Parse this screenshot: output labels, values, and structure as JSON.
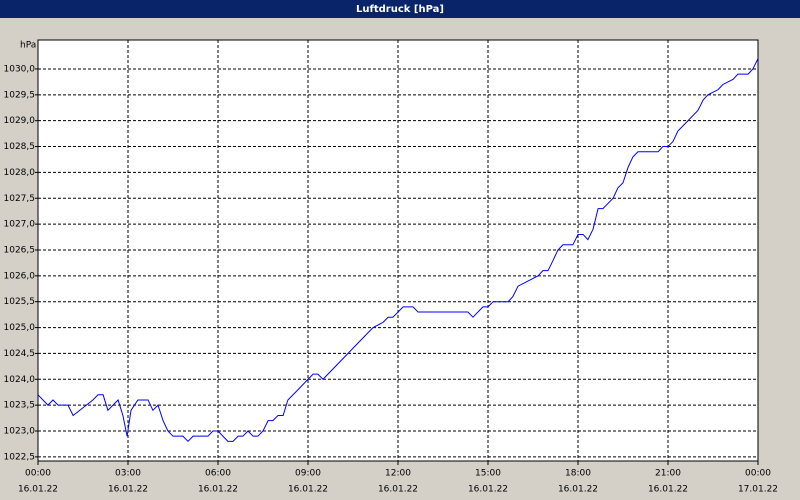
{
  "chart_data": {
    "type": "line",
    "title": "Luftdruck [hPa]",
    "y_unit": "hPa",
    "x": [
      0,
      0.33,
      0.5,
      0.67,
      1.0,
      1.17,
      1.5,
      1.83,
      2.0,
      2.17,
      2.33,
      2.5,
      2.67,
      2.83,
      2.97,
      3.1,
      3.33,
      3.67,
      3.83,
      4.0,
      4.17,
      4.33,
      4.5,
      4.83,
      5.0,
      5.17,
      5.67,
      5.83,
      6.0,
      6.33,
      6.5,
      6.67,
      6.83,
      7.0,
      7.17,
      7.33,
      7.5,
      7.67,
      7.83,
      8.0,
      8.17,
      8.33,
      8.67,
      9.0,
      9.17,
      9.33,
      9.5,
      10.0,
      10.5,
      11.0,
      11.17,
      11.5,
      11.67,
      11.83,
      12.0,
      12.17,
      12.5,
      12.67,
      13.0,
      14.33,
      14.5,
      14.83,
      15.0,
      15.17,
      15.67,
      15.83,
      16.0,
      16.33,
      16.67,
      16.83,
      17.0,
      17.17,
      17.33,
      17.5,
      17.83,
      18.0,
      18.17,
      18.33,
      18.5,
      18.67,
      18.83,
      19.0,
      19.17,
      19.33,
      19.5,
      19.67,
      19.83,
      20.0,
      20.67,
      20.83,
      21.0,
      21.17,
      21.33,
      21.5,
      22.0,
      22.17,
      22.33,
      22.67,
      22.83,
      23.17,
      23.33,
      23.67,
      23.83,
      24.0
    ],
    "series": [
      {
        "name": "Luftdruck",
        "color": "#0000ff",
        "values": [
          1023.7,
          1023.5,
          1023.6,
          1023.5,
          1023.5,
          1023.3,
          1023.45,
          1023.6,
          1023.7,
          1023.7,
          1023.4,
          1023.5,
          1023.6,
          1023.3,
          1022.9,
          1023.4,
          1023.6,
          1023.6,
          1023.4,
          1023.5,
          1023.2,
          1023.0,
          1022.9,
          1022.9,
          1022.8,
          1022.9,
          1022.9,
          1023.0,
          1023.0,
          1022.8,
          1022.8,
          1022.9,
          1022.9,
          1023.0,
          1022.9,
          1022.9,
          1023.0,
          1023.2,
          1023.2,
          1023.3,
          1023.3,
          1023.6,
          1023.8,
          1024.0,
          1024.1,
          1024.1,
          1024.0,
          1024.3,
          1024.6,
          1024.9,
          1025.0,
          1025.1,
          1025.2,
          1025.2,
          1025.3,
          1025.4,
          1025.4,
          1025.3,
          1025.3,
          1025.3,
          1025.2,
          1025.4,
          1025.4,
          1025.5,
          1025.5,
          1025.6,
          1025.8,
          1025.9,
          1026.0,
          1026.1,
          1026.1,
          1026.3,
          1026.5,
          1026.6,
          1026.6,
          1026.8,
          1026.8,
          1026.7,
          1026.9,
          1027.3,
          1027.3,
          1027.4,
          1027.5,
          1027.7,
          1027.8,
          1028.1,
          1028.3,
          1028.4,
          1028.4,
          1028.5,
          1028.5,
          1028.6,
          1028.8,
          1028.9,
          1029.2,
          1029.4,
          1029.5,
          1029.6,
          1029.7,
          1029.8,
          1029.9,
          1029.9,
          1030.0,
          1030.2
        ]
      }
    ],
    "xlim": [
      0,
      24
    ],
    "xticks": [
      {
        "value": 0,
        "label": "00:00"
      },
      {
        "value": 3,
        "label": "03:00"
      },
      {
        "value": 6,
        "label": "06:00"
      },
      {
        "value": 9,
        "label": "09:00"
      },
      {
        "value": 12,
        "label": "12:00"
      },
      {
        "value": 15,
        "label": "15:00"
      },
      {
        "value": 18,
        "label": "18:00"
      },
      {
        "value": 21,
        "label": "21:00"
      },
      {
        "value": 24,
        "label": "00:00"
      }
    ],
    "xtick_dates": [
      "16.01.22",
      "16.01.22",
      "16.01.22",
      "16.01.22",
      "16.01.22",
      "16.01.22",
      "16.01.22",
      "16.01.22",
      "17.01.22"
    ],
    "ylim": [
      1022.42,
      1030.56
    ],
    "yticks": [
      {
        "value": 1022.5,
        "label": "1022,5"
      },
      {
        "value": 1023,
        "label": "1023,0"
      },
      {
        "value": 1023.5,
        "label": "1023,5"
      },
      {
        "value": 1024,
        "label": "1024,0"
      },
      {
        "value": 1024.5,
        "label": "1024,5"
      },
      {
        "value": 1025,
        "label": "1025,0"
      },
      {
        "value": 1025.5,
        "label": "1025,5"
      },
      {
        "value": 1026,
        "label": "1026,0"
      },
      {
        "value": 1026.5,
        "label": "1026,5"
      },
      {
        "value": 1027,
        "label": "1027,0"
      },
      {
        "value": 1027.5,
        "label": "1027,5"
      },
      {
        "value": 1028,
        "label": "1028,0"
      },
      {
        "value": 1028.5,
        "label": "1028,5"
      },
      {
        "value": 1029,
        "label": "1029,0"
      },
      {
        "value": 1029.5,
        "label": "1029,5"
      },
      {
        "value": 1030,
        "label": "1030,0"
      }
    ],
    "grid": true
  }
}
